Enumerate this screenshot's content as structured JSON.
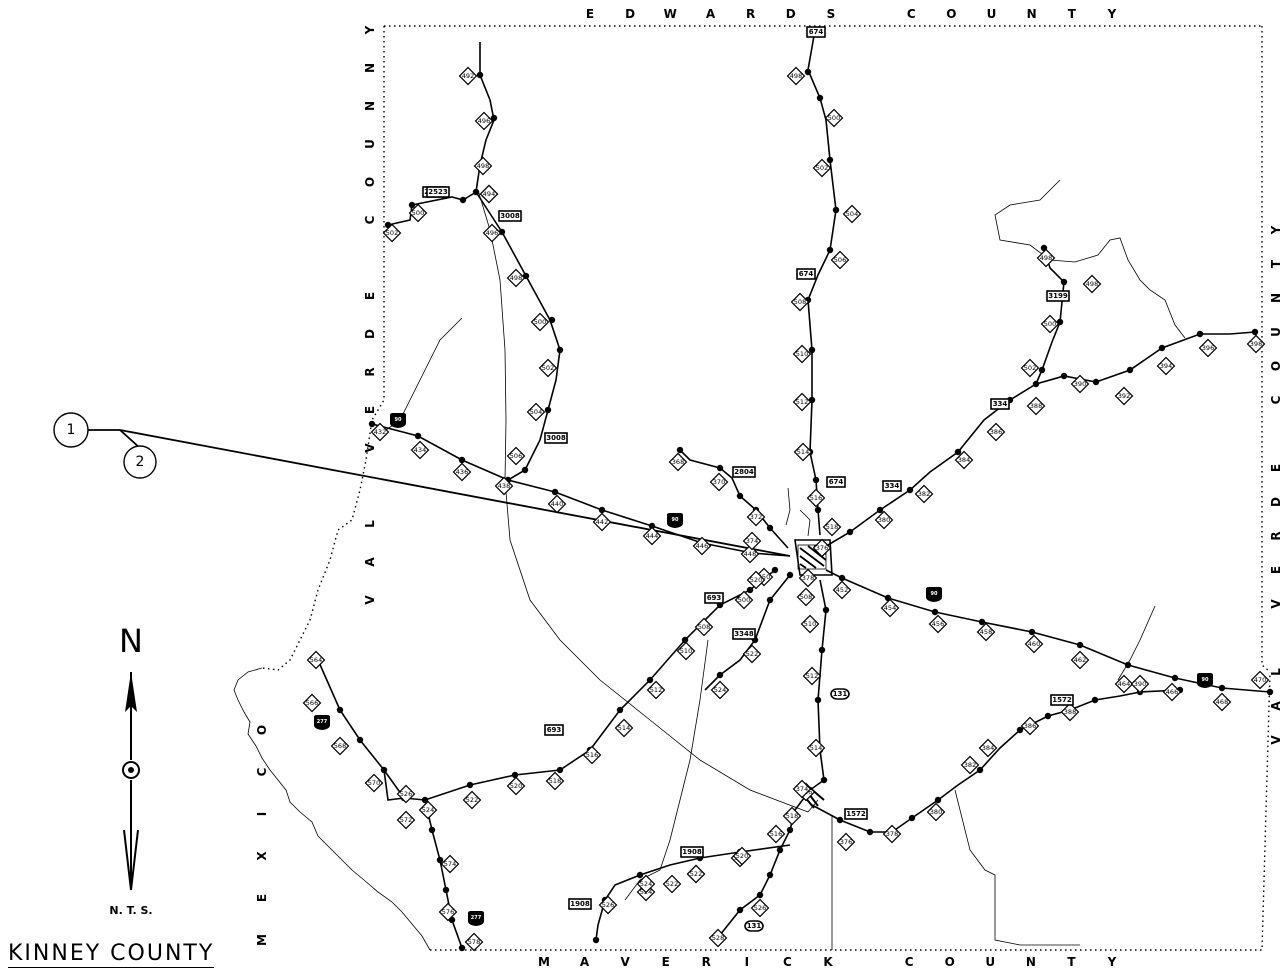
{
  "map": {
    "title": "KINNEY COUNTY",
    "scale_note": "N. T. S.",
    "north_label": "N",
    "callouts": [
      "1",
      "2"
    ],
    "neighboring_counties": {
      "north": "EDWARDS COUNTY",
      "south": "MAVERICK COUNTY",
      "west": "VAL VERDE COUNNY",
      "east": "VAL VERDE COUNTY",
      "southwest": "MEXICO"
    },
    "state_highways": [
      "674",
      "674",
      "674",
      "2523",
      "2523",
      "3008",
      "3008",
      "2804",
      "334",
      "334",
      "3199",
      "693",
      "693",
      "3348",
      "1572",
      "1572",
      "1908",
      "1908",
      "131",
      "131"
    ],
    "us_highways": [
      "90",
      "90",
      "90",
      "90",
      "277",
      "277"
    ],
    "route_markers": [
      "498",
      "500",
      "502",
      "504",
      "506",
      "508",
      "510",
      "512",
      "514",
      "516",
      "518",
      "492",
      "494",
      "496",
      "498",
      "500",
      "502",
      "494",
      "496",
      "498",
      "500",
      "502",
      "504",
      "506",
      "432",
      "434",
      "436",
      "438",
      "440",
      "442",
      "444",
      "446",
      "448",
      "450",
      "368",
      "370",
      "372",
      "374",
      "376",
      "378",
      "380",
      "382",
      "384",
      "386",
      "388",
      "390",
      "392",
      "394",
      "396",
      "398",
      "498",
      "498",
      "500",
      "502",
      "452",
      "454",
      "456",
      "458",
      "460",
      "462",
      "464",
      "466",
      "468",
      "470",
      "500",
      "508",
      "510",
      "512",
      "514",
      "516",
      "518",
      "520",
      "522",
      "524",
      "526",
      "508",
      "510",
      "512",
      "514",
      "516",
      "518",
      "520",
      "522",
      "524",
      "516",
      "518",
      "520",
      "522",
      "524",
      "374",
      "376",
      "378",
      "380",
      "382",
      "384",
      "386",
      "388",
      "390",
      "520",
      "522",
      "524",
      "526",
      "528",
      "564",
      "566",
      "568",
      "570",
      "572",
      "574",
      "576",
      "578",
      "526"
    ]
  }
}
